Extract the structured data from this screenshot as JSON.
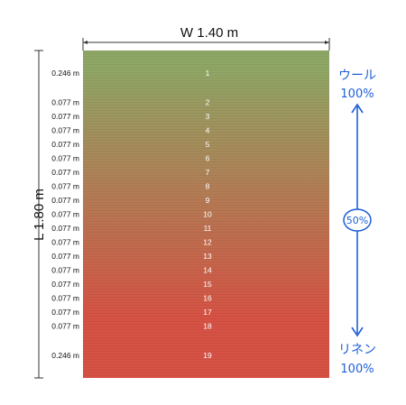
{
  "width_label": "W 1.40 m",
  "length_label": "L 1.80 m",
  "colors": {
    "top": "#8fa766",
    "bottom": "#d65244",
    "annotation": "#1e5fd8",
    "line": "#333333"
  },
  "rows": [
    {
      "height": "0.246 m",
      "number": "1"
    },
    {
      "height": "0.077 m",
      "number": "2"
    },
    {
      "height": "0.077 m",
      "number": "3"
    },
    {
      "height": "0.077 m",
      "number": "4"
    },
    {
      "height": "0.077 m",
      "number": "5"
    },
    {
      "height": "0.077 m",
      "number": "6"
    },
    {
      "height": "0.077 m",
      "number": "7"
    },
    {
      "height": "0.077 m",
      "number": "8"
    },
    {
      "height": "0.077 m",
      "number": "9"
    },
    {
      "height": "0.077 m",
      "number": "10"
    },
    {
      "height": "0.077 m",
      "number": "11"
    },
    {
      "height": "0.077 m",
      "number": "12"
    },
    {
      "height": "0.077 m",
      "number": "13"
    },
    {
      "height": "0.077 m",
      "number": "14"
    },
    {
      "height": "0.077 m",
      "number": "15"
    },
    {
      "height": "0.077 m",
      "number": "16"
    },
    {
      "height": "0.077 m",
      "number": "17"
    },
    {
      "height": "0.077 m",
      "number": "18"
    },
    {
      "height": "0.246 m",
      "number": "19"
    }
  ],
  "annotations": {
    "top_material": "ウール",
    "top_percent": "100%",
    "middle_percent": "50%",
    "bottom_material": "リネン",
    "bottom_percent": "100%"
  }
}
